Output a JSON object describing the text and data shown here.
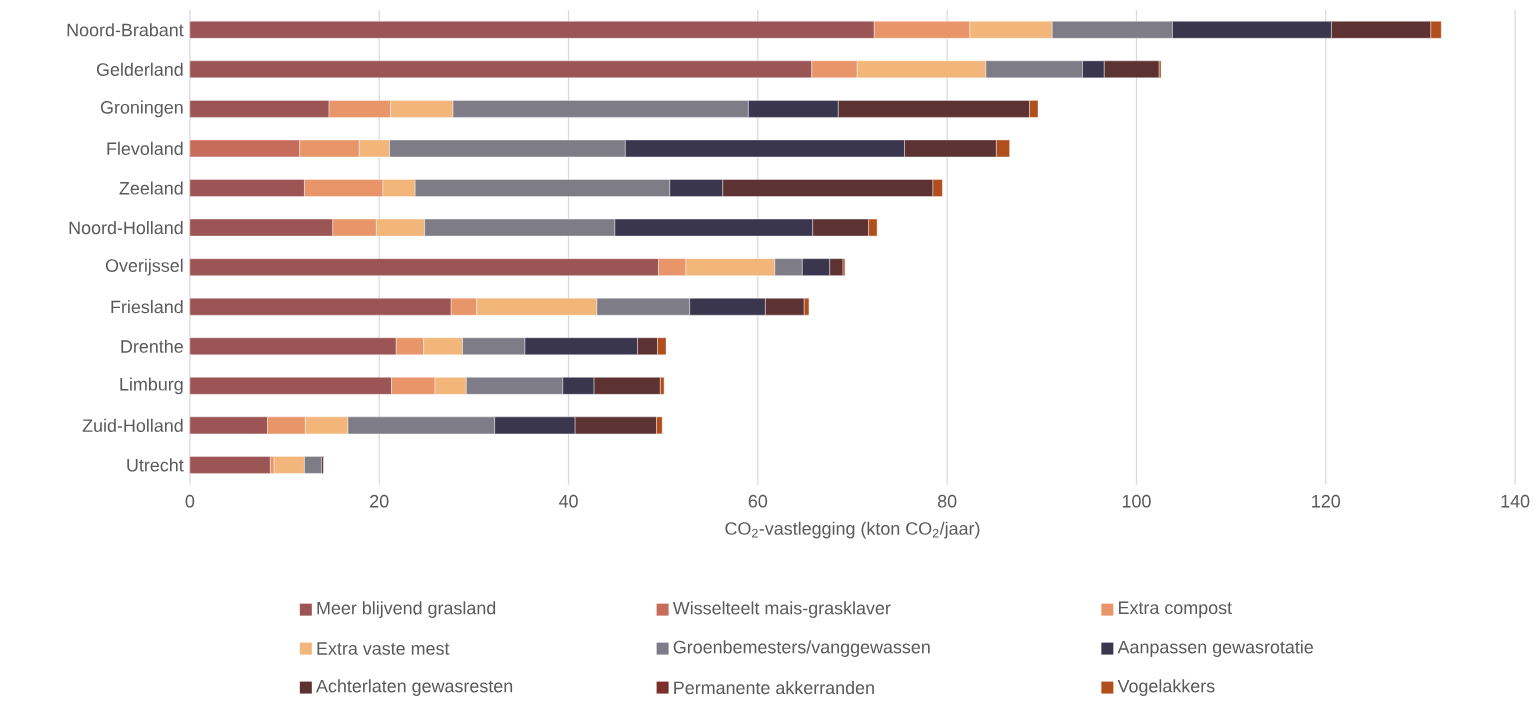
{
  "chart_data": {
    "type": "bar",
    "orientation": "horizontal",
    "stacked": true,
    "xlabel": "CO$_{2}$-vastlegging (kton CO$_{2}$/jaar)",
    "categories": [
      "Noord-Brabant",
      "Gelderland",
      "Groningen",
      "Flevoland",
      "Zeeland",
      "Noord-Holland",
      "Overijssel",
      "Friesland",
      "Drenthe",
      "Limburg",
      "Zuid-Holland",
      "Utrecht"
    ],
    "series": [
      {
        "name": "Meer blijvend grasland",
        "color": "#9b5554",
        "values": [
          72.3,
          65.7,
          14.7,
          null,
          12.1,
          15.1,
          49.5,
          27.6,
          21.8,
          21.3,
          8.2,
          8.5
        ]
      },
      {
        "name": "Wisselteelt mais-grasklaver",
        "color": "#c76c5b",
        "values": [
          null,
          null,
          null,
          11.6,
          null,
          null,
          null,
          null,
          null,
          null,
          null,
          null
        ]
      },
      {
        "name": "Extra compost",
        "color": "#e9956a",
        "values": [
          10.1,
          4.8,
          6.5,
          6.3,
          8.3,
          4.6,
          2.9,
          2.7,
          2.9,
          4.6,
          4.0,
          0.4
        ]
      },
      {
        "name": "Extra vaste mest",
        "color": "#f2b57a",
        "values": [
          8.7,
          13.6,
          6.6,
          3.2,
          3.4,
          5.1,
          9.4,
          12.7,
          4.1,
          3.3,
          4.5,
          3.2
        ]
      },
      {
        "name": "Groenbemesters/vanggewassen",
        "color": "#7e7c87",
        "values": [
          12.7,
          10.2,
          31.2,
          24.9,
          26.9,
          20.1,
          2.9,
          9.8,
          6.6,
          10.2,
          15.5,
          1.8
        ]
      },
      {
        "name": "Aanpassen gewasrotatie",
        "color": "#3a364d",
        "values": [
          16.8,
          2.3,
          9.5,
          29.5,
          5.6,
          20.9,
          2.9,
          8.0,
          11.9,
          3.3,
          8.5,
          null
        ]
      },
      {
        "name": "Achterlaten gewasresten",
        "color": "#5c3232",
        "values": [
          10.5,
          5.8,
          20.2,
          9.7,
          22.2,
          5.9,
          1.4,
          4.1,
          2.1,
          7.0,
          8.6,
          0.2
        ]
      },
      {
        "name": "Permanente akkerranden",
        "color": "#7b2f2a",
        "values": [
          null,
          null,
          null,
          null,
          null,
          null,
          null,
          null,
          null,
          null,
          null,
          null
        ]
      },
      {
        "name": "Vogelakkers",
        "color": "#b04e1c",
        "values": [
          1.1,
          0.2,
          0.9,
          1.4,
          1.0,
          0.9,
          0.2,
          0.5,
          0.9,
          0.4,
          0.6,
          null
        ]
      }
    ],
    "xlim": [
      0,
      140
    ],
    "xticks": [
      0,
      20,
      40,
      60,
      80,
      100,
      120,
      140
    ],
    "grid": "x",
    "legend": "bottom"
  }
}
